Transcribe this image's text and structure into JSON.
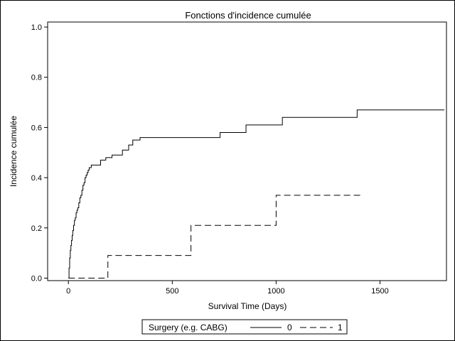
{
  "chart_data": {
    "type": "line",
    "title": "Fonctions d'incidence cumulée",
    "xlabel": "Survival Time (Days)",
    "ylabel": "Incidence cumulée",
    "xlim": [
      -100,
      1820
    ],
    "ylim": [
      -0.01,
      1.02
    ],
    "xticks": [
      0,
      500,
      1000,
      1500
    ],
    "yticks": [
      0.0,
      0.2,
      0.4,
      0.6,
      0.8,
      1.0
    ],
    "xtick_labels": [
      "0",
      "500",
      "1000",
      "1500"
    ],
    "ytick_labels": [
      "0.0",
      "0.2",
      "0.4",
      "0.6",
      "0.8",
      "1.0"
    ],
    "grid": false,
    "legend": {
      "title": "Surgery (e.g. CABG)",
      "placement": "bottom-center",
      "entries": [
        "0",
        "1"
      ]
    },
    "series": [
      {
        "name": "0",
        "line_style": "solid",
        "step": true,
        "x": [
          0,
          3,
          6,
          9,
          12,
          15,
          18,
          21,
          25,
          29,
          33,
          37,
          41,
          45,
          50,
          55,
          60,
          65,
          70,
          75,
          80,
          85,
          90,
          95,
          100,
          110,
          155,
          180,
          210,
          260,
          290,
          310,
          345,
          730,
          855,
          1030,
          1390,
          1810
        ],
        "y": [
          0.0,
          0.04,
          0.08,
          0.11,
          0.13,
          0.15,
          0.17,
          0.19,
          0.21,
          0.23,
          0.24,
          0.26,
          0.27,
          0.28,
          0.3,
          0.32,
          0.33,
          0.35,
          0.37,
          0.38,
          0.4,
          0.41,
          0.42,
          0.43,
          0.44,
          0.45,
          0.47,
          0.48,
          0.49,
          0.51,
          0.53,
          0.55,
          0.56,
          0.58,
          0.61,
          0.64,
          0.67,
          0.67
        ]
      },
      {
        "name": "1",
        "line_style": "dashed",
        "step": true,
        "x": [
          0,
          190,
          590,
          1000,
          1420
        ],
        "y": [
          0.0,
          0.09,
          0.21,
          0.33,
          0.33
        ]
      }
    ]
  },
  "colors": {
    "line": "#000000",
    "frame": "#000000",
    "background": "#ffffff"
  }
}
